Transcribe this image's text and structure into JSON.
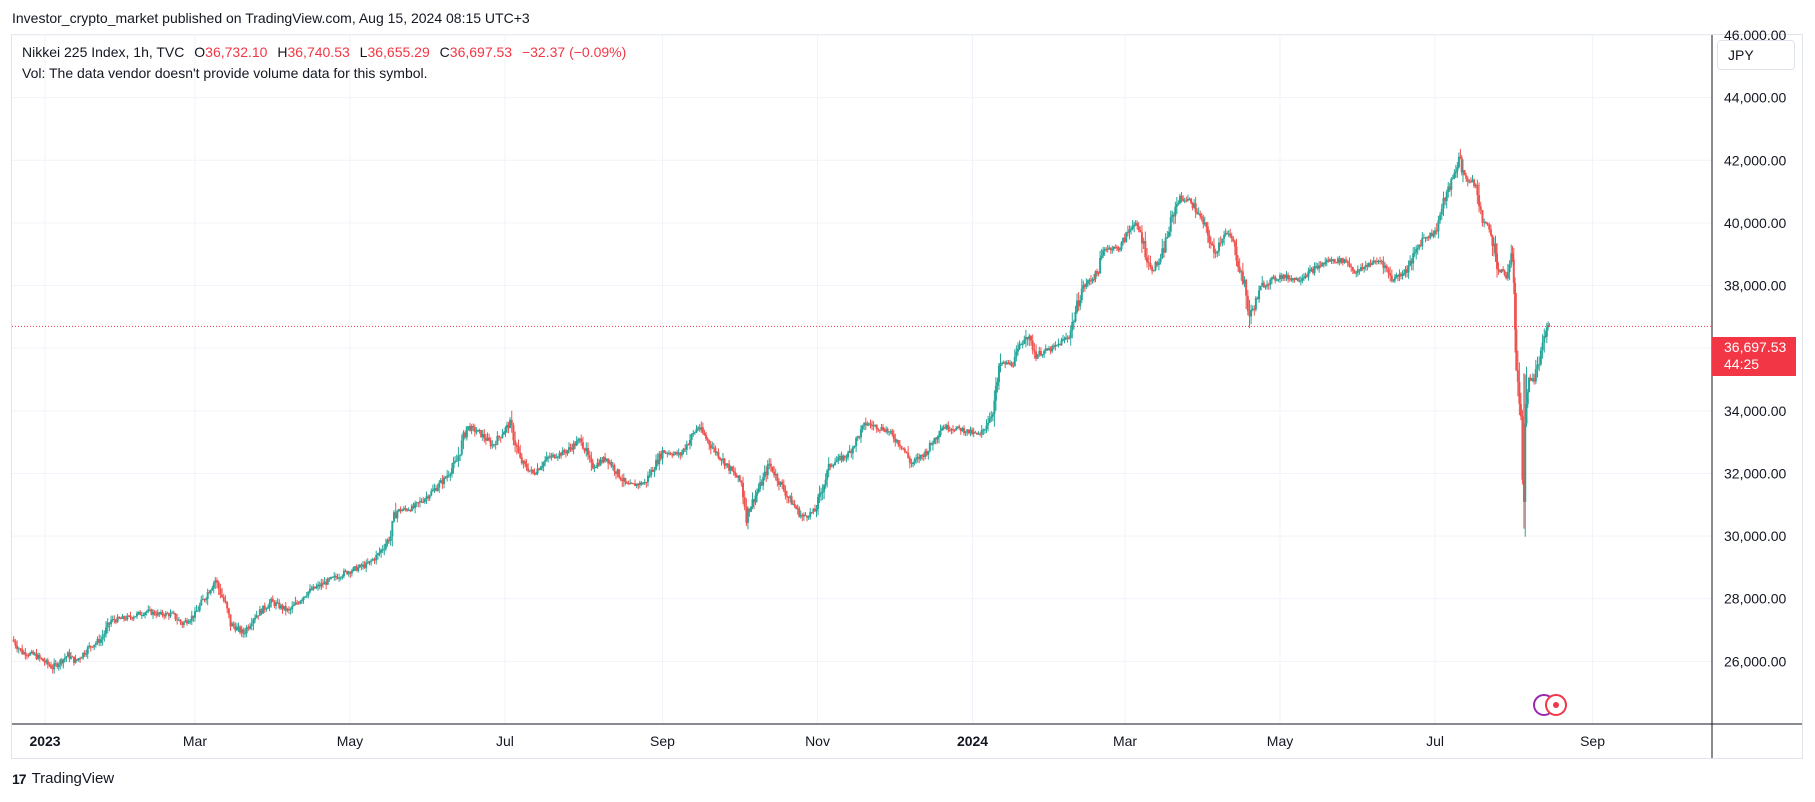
{
  "header": {
    "published": "Investor_crypto_market published on TradingView.com, Aug 15, 2024 08:15 UTC+3"
  },
  "legend": {
    "symbol": "Nikkei 225 Index, 1h, TVC",
    "open_label": "O",
    "open": "36,732.10",
    "high_label": "H",
    "high": "36,740.53",
    "low_label": "L",
    "low": "36,655.29",
    "close_label": "C",
    "close": "36,697.53",
    "change": "−32.37 (−0.09%)",
    "volume_note": "Vol: The data vendor doesn't provide volume data for this symbol."
  },
  "scale": {
    "currency": "JPY"
  },
  "last_price": {
    "value": "36,697.53",
    "countdown": "44:25"
  },
  "footer": {
    "brand": "TradingView",
    "logo": "17"
  },
  "colors": {
    "up": "#26a69a",
    "down": "#ef5350",
    "grid": "#f0f3fa",
    "last_line": "#f23645"
  },
  "events": [
    {
      "icon": "purple-event-icon"
    },
    {
      "icon": "red-event-icon"
    }
  ],
  "chart_data": {
    "type": "candlestick",
    "title": "Nikkei 225 Index, 1h, TVC",
    "xlabel": "",
    "ylabel": "",
    "ylim": [
      24000,
      46000
    ],
    "y_ticks": [
      "26,000.00",
      "28,000.00",
      "30,000.00",
      "32,000.00",
      "34,000.00",
      "36,000.00",
      "38,000.00",
      "40,000.00",
      "42,000.00",
      "44,000.00",
      "46,000.00"
    ],
    "y_tick_values": [
      26000,
      28000,
      30000,
      32000,
      34000,
      36000,
      38000,
      40000,
      42000,
      44000,
      46000
    ],
    "x_ticks": [
      {
        "label": "2023",
        "date": "2023-01-01",
        "bold": true
      },
      {
        "label": "Mar",
        "date": "2023-03-01"
      },
      {
        "label": "May",
        "date": "2023-05-01"
      },
      {
        "label": "Jul",
        "date": "2023-07-01"
      },
      {
        "label": "Sep",
        "date": "2023-09-01"
      },
      {
        "label": "Nov",
        "date": "2023-11-01"
      },
      {
        "label": "2024",
        "date": "2024-01-01",
        "bold": true
      },
      {
        "label": "Mar",
        "date": "2024-03-01"
      },
      {
        "label": "May",
        "date": "2024-05-01"
      },
      {
        "label": "Jul",
        "date": "2024-07-01"
      },
      {
        "label": "Sep",
        "date": "2024-09-01"
      }
    ],
    "x_range": [
      "2022-12-19",
      "2024-10-18"
    ],
    "last_price": 36697.53,
    "series": [
      {
        "points": [
          [
            "2022-12-19",
            26700
          ],
          [
            "2022-12-23",
            26300
          ],
          [
            "2022-12-28",
            26200
          ],
          [
            "2023-01-04",
            25800
          ],
          [
            "2023-01-10",
            26200
          ],
          [
            "2023-01-13",
            26000
          ],
          [
            "2023-01-19",
            26500
          ],
          [
            "2023-01-23",
            26700
          ],
          [
            "2023-01-27",
            27300
          ],
          [
            "2023-02-03",
            27400
          ],
          [
            "2023-02-10",
            27600
          ],
          [
            "2023-02-15",
            27500
          ],
          [
            "2023-02-20",
            27500
          ],
          [
            "2023-02-24",
            27200
          ],
          [
            "2023-03-01",
            27500
          ],
          [
            "2023-03-06",
            28200
          ],
          [
            "2023-03-09",
            28600
          ],
          [
            "2023-03-13",
            27800
          ],
          [
            "2023-03-15",
            27200
          ],
          [
            "2023-03-20",
            26900
          ],
          [
            "2023-03-24",
            27400
          ],
          [
            "2023-03-31",
            27900
          ],
          [
            "2023-04-07",
            27600
          ],
          [
            "2023-04-14",
            28200
          ],
          [
            "2023-04-21",
            28500
          ],
          [
            "2023-04-28",
            28800
          ],
          [
            "2023-05-08",
            29100
          ],
          [
            "2023-05-12",
            29400
          ],
          [
            "2023-05-17",
            30000
          ],
          [
            "2023-05-19",
            30800
          ],
          [
            "2023-05-26",
            30900
          ],
          [
            "2023-06-02",
            31400
          ],
          [
            "2023-06-07",
            31800
          ],
          [
            "2023-06-12",
            32400
          ],
          [
            "2023-06-16",
            33500
          ],
          [
            "2023-06-21",
            33300
          ],
          [
            "2023-06-26",
            32900
          ],
          [
            "2023-06-30",
            33300
          ],
          [
            "2023-07-03",
            33600
          ],
          [
            "2023-07-07",
            32400
          ],
          [
            "2023-07-12",
            32000
          ],
          [
            "2023-07-18",
            32500
          ],
          [
            "2023-07-25",
            32700
          ],
          [
            "2023-07-31",
            33100
          ],
          [
            "2023-08-04",
            32200
          ],
          [
            "2023-08-10",
            32500
          ],
          [
            "2023-08-18",
            31600
          ],
          [
            "2023-08-25",
            31700
          ],
          [
            "2023-09-01",
            32700
          ],
          [
            "2023-09-08",
            32600
          ],
          [
            "2023-09-15",
            33500
          ],
          [
            "2023-09-20",
            32900
          ],
          [
            "2023-09-26",
            32300
          ],
          [
            "2023-10-02",
            31700
          ],
          [
            "2023-10-04",
            30700
          ],
          [
            "2023-10-10",
            31700
          ],
          [
            "2023-10-13",
            32300
          ],
          [
            "2023-10-20",
            31300
          ],
          [
            "2023-10-26",
            30600
          ],
          [
            "2023-10-31",
            30800
          ],
          [
            "2023-11-06",
            32300
          ],
          [
            "2023-11-13",
            32600
          ],
          [
            "2023-11-20",
            33600
          ],
          [
            "2023-11-28",
            33400
          ],
          [
            "2023-12-04",
            32900
          ],
          [
            "2023-12-08",
            32300
          ],
          [
            "2023-12-14",
            32700
          ],
          [
            "2023-12-20",
            33500
          ],
          [
            "2023-12-28",
            33400
          ],
          [
            "2024-01-04",
            33200
          ],
          [
            "2024-01-09",
            34000
          ],
          [
            "2024-01-12",
            35500
          ],
          [
            "2024-01-17",
            35500
          ],
          [
            "2024-01-22",
            36500
          ],
          [
            "2024-01-26",
            35800
          ],
          [
            "2024-02-02",
            36000
          ],
          [
            "2024-02-08",
            36400
          ],
          [
            "2024-02-13",
            37900
          ],
          [
            "2024-02-19",
            38400
          ],
          [
            "2024-02-22",
            39200
          ],
          [
            "2024-02-28",
            39200
          ],
          [
            "2024-03-04",
            40000
          ],
          [
            "2024-03-07",
            39700
          ],
          [
            "2024-03-11",
            38500
          ],
          [
            "2024-03-15",
            38800
          ],
          [
            "2024-03-19",
            40000
          ],
          [
            "2024-03-22",
            40800
          ],
          [
            "2024-03-27",
            40700
          ],
          [
            "2024-04-02",
            39800
          ],
          [
            "2024-04-05",
            39000
          ],
          [
            "2024-04-09",
            39700
          ],
          [
            "2024-04-12",
            39500
          ],
          [
            "2024-04-17",
            38000
          ],
          [
            "2024-04-19",
            37000
          ],
          [
            "2024-04-24",
            38000
          ],
          [
            "2024-05-01",
            38300
          ],
          [
            "2024-05-08",
            38200
          ],
          [
            "2024-05-14",
            38500
          ],
          [
            "2024-05-20",
            38800
          ],
          [
            "2024-05-27",
            38800
          ],
          [
            "2024-05-31",
            38400
          ],
          [
            "2024-06-05",
            38700
          ],
          [
            "2024-06-10",
            38800
          ],
          [
            "2024-06-14",
            38200
          ],
          [
            "2024-06-20",
            38500
          ],
          [
            "2024-06-26",
            39500
          ],
          [
            "2024-07-01",
            39700
          ],
          [
            "2024-07-05",
            40800
          ],
          [
            "2024-07-08",
            41400
          ],
          [
            "2024-07-11",
            42200
          ],
          [
            "2024-07-12",
            41500
          ],
          [
            "2024-07-17",
            41200
          ],
          [
            "2024-07-19",
            40200
          ],
          [
            "2024-07-23",
            39700
          ],
          [
            "2024-07-26",
            38500
          ],
          [
            "2024-07-29",
            38300
          ],
          [
            "2024-07-31",
            38900
          ],
          [
            "2024-08-01",
            38200
          ],
          [
            "2024-08-02",
            35900
          ],
          [
            "2024-08-05",
            31500
          ],
          [
            "2024-08-06",
            34500
          ],
          [
            "2024-08-07",
            34900
          ],
          [
            "2024-08-08",
            35100
          ],
          [
            "2024-08-09",
            35000
          ],
          [
            "2024-08-13",
            36200
          ],
          [
            "2024-08-14",
            36700
          ],
          [
            "2024-08-15",
            36697.53
          ]
        ]
      }
    ]
  }
}
